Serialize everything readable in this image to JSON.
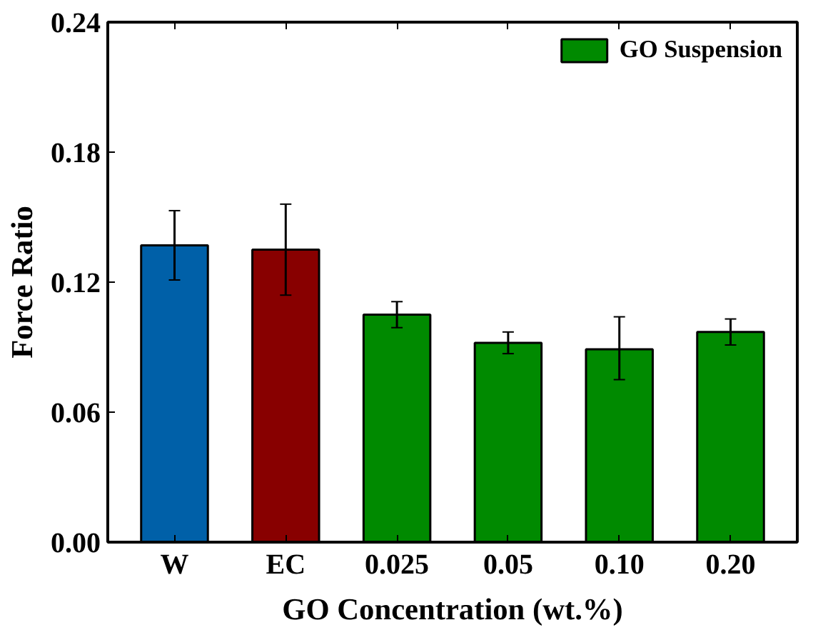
{
  "chart_data": {
    "type": "bar",
    "xlabel": "GO Concentration (wt.%)",
    "ylabel": "Force Ratio",
    "categories": [
      "W",
      "EC",
      "0.025",
      "0.05",
      "0.10",
      "0.20"
    ],
    "series": [
      {
        "colors": [
          "#0060a8",
          "#880000",
          null,
          null,
          null,
          null
        ],
        "values": [
          0.137,
          0.135,
          null,
          null,
          null,
          null
        ],
        "errors": [
          [
            0.121,
            0.153
          ],
          [
            0.114,
            0.156
          ],
          null,
          null,
          null,
          null
        ]
      },
      {
        "name": "GO Suspension",
        "color": "#008a00",
        "values": [
          null,
          null,
          0.105,
          0.092,
          0.089,
          0.097
        ],
        "errors": [
          null,
          null,
          [
            0.099,
            0.111
          ],
          [
            0.087,
            0.097
          ],
          [
            0.075,
            0.104
          ],
          [
            0.091,
            0.103
          ]
        ]
      }
    ],
    "ylim": [
      0,
      0.24
    ],
    "yticks": [
      {
        "value": 0,
        "label": "0.00"
      },
      0.06,
      0.12,
      0.18,
      0.24
    ],
    "legend": "top right",
    "grid": false
  }
}
